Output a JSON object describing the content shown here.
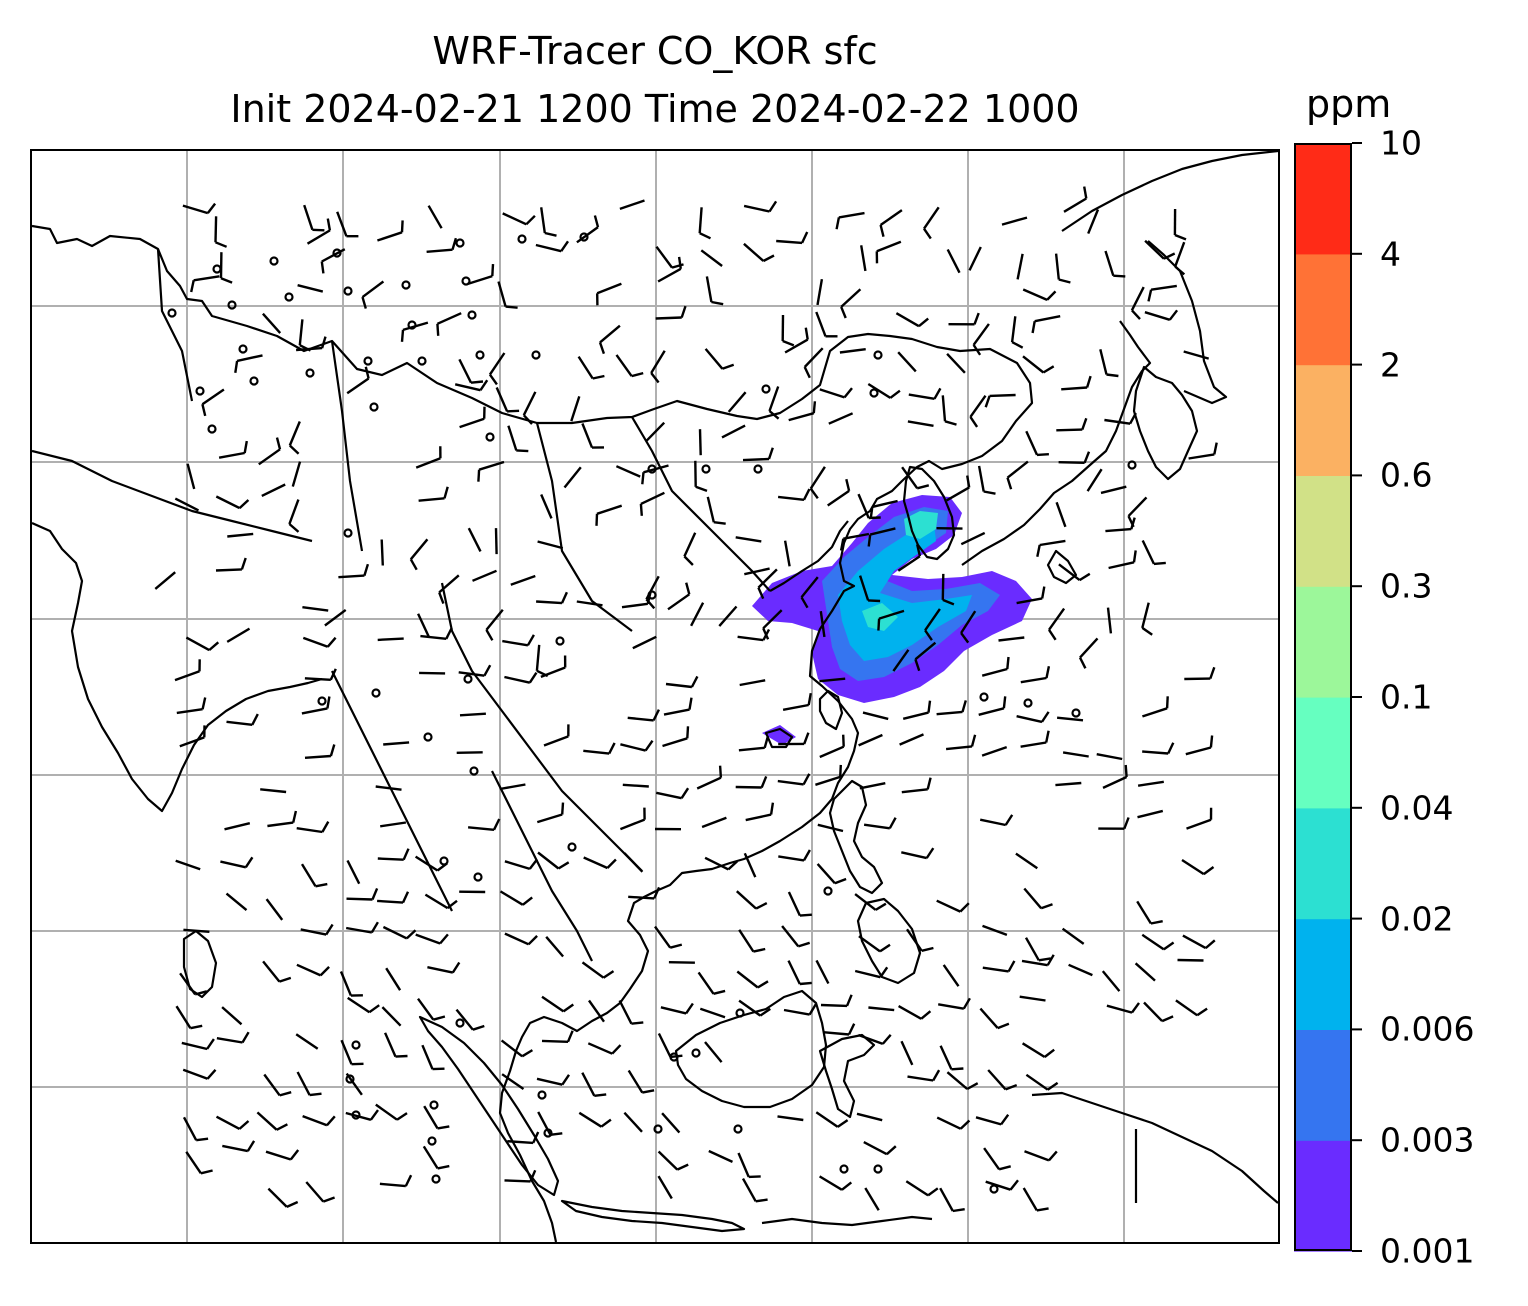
{
  "title": {
    "line1": "WRF-Tracer CO_KOR sfc",
    "line2": "Init 2024-02-21 1200 Time 2024-02-22 1000"
  },
  "colorbar": {
    "unit": "ppm",
    "levels": [
      "0.001",
      "0.003",
      "0.006",
      "0.02",
      "0.04",
      "0.1",
      "0.3",
      "0.6",
      "2",
      "4",
      "10"
    ],
    "colors": [
      "#6a2cff",
      "#3575f0",
      "#00b2ee",
      "#2ce0d2",
      "#66ffc0",
      "#9cf79a",
      "#d1e187",
      "#fbb162",
      "#ff7236",
      "#ff2b17"
    ]
  },
  "map": {
    "gridlines": true,
    "gridline_color": "#b0b0b0",
    "coastline_color": "#000000",
    "barb_color": "#000000",
    "plume_colors": [
      "#6a2cff",
      "#3575f0",
      "#00b2ee",
      "#2ce0d2"
    ]
  }
}
